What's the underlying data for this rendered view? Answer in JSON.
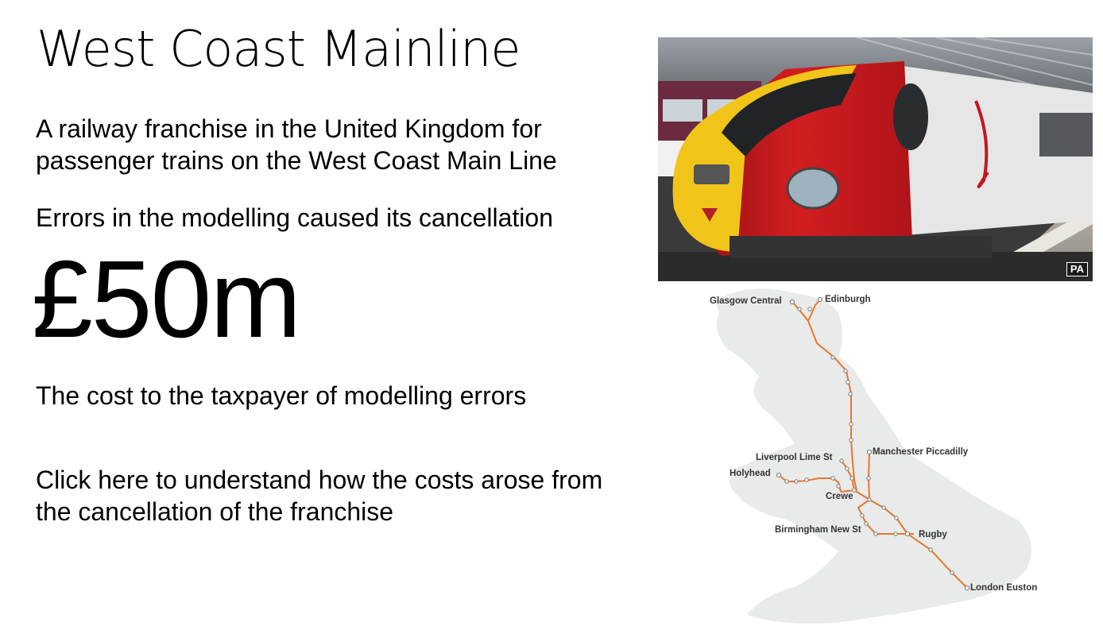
{
  "slide": {
    "title": "West Coast Mainline",
    "description": "A railway franchise in the United Kingdom for passenger trains on the West Coast Main Line",
    "errors_text": "Errors in the modelling caused its cancellation",
    "cost_figure": "£50m",
    "cost_caption": "The cost to the taxpayer of modelling errors",
    "cta_text": "Click here to understand how the costs arose from the cancellation of the franchise"
  },
  "photo": {
    "badge": "PA",
    "livery_colors": {
      "red": "#c4161c",
      "yellow": "#f2c418",
      "white": "#e9e9e9"
    }
  },
  "route_map": {
    "line_color": "#e9772b",
    "land_color": "#e9eaea",
    "stations": {
      "glasgow": "Glasgow Central",
      "edinburgh": "Edinburgh",
      "manchester": "Manchester Piccadilly",
      "liverpool": "Liverpool Lime St",
      "holyhead": "Holyhead",
      "crewe": "Crewe",
      "birmingham": "Birmingham New St",
      "rugby": "Rugby",
      "london": "London Euston"
    }
  }
}
